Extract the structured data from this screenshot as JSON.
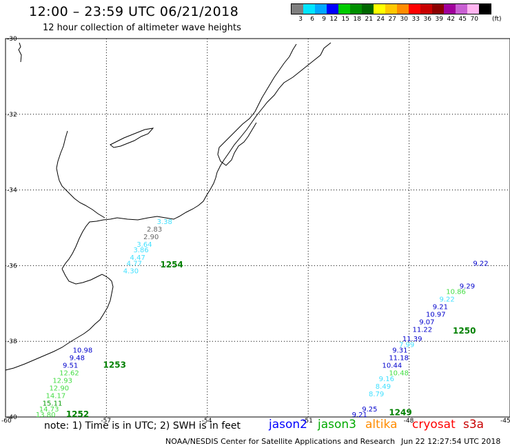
{
  "header": {
    "title": "12:00 – 23:59 UTC 06/21/2018",
    "subtitle": "12 hour collection of altimeter wave heights"
  },
  "legend": {
    "colors": [
      "#7f7f7f",
      "#00e5ff",
      "#00a8ff",
      "#0000ff",
      "#00cc00",
      "#008f00",
      "#006600",
      "#ffff00",
      "#ffc800",
      "#ff8c00",
      "#ff0000",
      "#c80000",
      "#8b0000",
      "#a0009b",
      "#c85fd2",
      "#ffb4f0",
      "#000000"
    ],
    "labels": [
      "3",
      "6",
      "9",
      "12",
      "15",
      "18",
      "21",
      "24",
      "27",
      "30",
      "33",
      "36",
      "39",
      "42",
      "45",
      "70"
    ],
    "unit": "(ft)"
  },
  "axes": {
    "lat_labels": [
      "-30",
      "-32",
      "-34",
      "-36",
      "-38",
      "-40"
    ],
    "lon_labels": [
      "-60",
      "-57",
      "-54",
      "-51",
      "-48",
      "-45"
    ]
  },
  "points": [
    {
      "label": "3.38",
      "color": "#40e0ff",
      "lon": -55.5,
      "lat": -34.9
    },
    {
      "label": "2.83",
      "color": "#666666",
      "lon": -55.8,
      "lat": -35.1
    },
    {
      "label": "2.90",
      "color": "#666666",
      "lon": -55.9,
      "lat": -35.3
    },
    {
      "label": "3.64",
      "color": "#40e0ff",
      "lon": -56.1,
      "lat": -35.5
    },
    {
      "label": "3.86",
      "color": "#40e0ff",
      "lon": -56.2,
      "lat": -35.65
    },
    {
      "label": "4.47",
      "color": "#40e0ff",
      "lon": -56.3,
      "lat": -35.85
    },
    {
      "label": "4.77",
      "color": "#40e0ff",
      "lon": -56.4,
      "lat": -36.0
    },
    {
      "label": "4.30",
      "color": "#40e0ff",
      "lon": -56.5,
      "lat": -36.2
    },
    {
      "label": "1254",
      "color": "#008000",
      "lon": -55.4,
      "lat": -36.05,
      "bold": true
    },
    {
      "label": "10.98",
      "color": "#0000cc",
      "lon": -58.0,
      "lat": -38.3
    },
    {
      "label": "9.48",
      "color": "#0000cc",
      "lon": -58.1,
      "lat": -38.5
    },
    {
      "label": "9.51",
      "color": "#0000cc",
      "lon": -58.3,
      "lat": -38.7
    },
    {
      "label": "12.62",
      "color": "#44dd44",
      "lon": -58.4,
      "lat": -38.9
    },
    {
      "label": "12.93",
      "color": "#44dd44",
      "lon": -58.6,
      "lat": -39.1
    },
    {
      "label": "12.90",
      "color": "#44dd44",
      "lon": -58.7,
      "lat": -39.3
    },
    {
      "label": "14.17",
      "color": "#44dd44",
      "lon": -58.8,
      "lat": -39.5
    },
    {
      "label": "15.11",
      "color": "#009900",
      "lon": -58.9,
      "lat": -39.7
    },
    {
      "label": "14.73",
      "color": "#44dd44",
      "lon": -59.0,
      "lat": -39.85
    },
    {
      "label": "13.80",
      "color": "#44dd44",
      "lon": -59.1,
      "lat": -40.0
    },
    {
      "label": "1253",
      "color": "#008000",
      "lon": -57.1,
      "lat": -38.7,
      "bold": true
    },
    {
      "label": "1252",
      "color": "#008000",
      "lon": -58.2,
      "lat": -40.0,
      "bold": true
    },
    {
      "label": "9.22",
      "color": "#0000cc",
      "lon": -46.1,
      "lat": -36.0
    },
    {
      "label": "9.29",
      "color": "#0000cc",
      "lon": -46.5,
      "lat": -36.6
    },
    {
      "label": "10.86",
      "color": "#44dd44",
      "lon": -46.9,
      "lat": -36.75
    },
    {
      "label": "9.22",
      "color": "#40e0ff",
      "lon": -47.1,
      "lat": -36.95
    },
    {
      "label": "9.21",
      "color": "#0000cc",
      "lon": -47.3,
      "lat": -37.15
    },
    {
      "label": "10.97",
      "color": "#0000cc",
      "lon": -47.5,
      "lat": -37.35
    },
    {
      "label": "9.07",
      "color": "#0000cc",
      "lon": -47.7,
      "lat": -37.55
    },
    {
      "label": "11.22",
      "color": "#0000cc",
      "lon": -47.9,
      "lat": -37.75
    },
    {
      "label": "11.39",
      "color": "#0000cc",
      "lon": -48.2,
      "lat": -38.0
    },
    {
      "label": "7.99",
      "color": "#40e0ff",
      "lon": -48.3,
      "lat": -38.15
    },
    {
      "label": "9.31",
      "color": "#0000cc",
      "lon": -48.5,
      "lat": -38.3
    },
    {
      "label": "11.18",
      "color": "#0000cc",
      "lon": -48.6,
      "lat": -38.5
    },
    {
      "label": "10.44",
      "color": "#0000cc",
      "lon": -48.8,
      "lat": -38.7
    },
    {
      "label": "10.48",
      "color": "#44dd44",
      "lon": -48.6,
      "lat": -38.9
    },
    {
      "label": "9.16",
      "color": "#40e0ff",
      "lon": -48.9,
      "lat": -39.05
    },
    {
      "label": "8.49",
      "color": "#40e0ff",
      "lon": -49.0,
      "lat": -39.25
    },
    {
      "label": "8.79",
      "color": "#40e0ff",
      "lon": -49.2,
      "lat": -39.45
    },
    {
      "label": "9.25",
      "color": "#0000cc",
      "lon": -49.4,
      "lat": -39.85
    },
    {
      "label": "9.21",
      "color": "#0000cc",
      "lon": -49.7,
      "lat": -40.0
    },
    {
      "label": "1250",
      "color": "#008000",
      "lon": -46.7,
      "lat": -37.8,
      "bold": true
    },
    {
      "label": "1249",
      "color": "#008000",
      "lon": -48.6,
      "lat": -39.95,
      "bold": true
    }
  ],
  "footer": {
    "note": "note: 1) Time is in UTC; 2) SWH is in feet",
    "satellites": [
      {
        "name": "jason2",
        "color": "#0000ff"
      },
      {
        "name": "jason3",
        "color": "#00aa00"
      },
      {
        "name": "altika",
        "color": "#ff8c00"
      },
      {
        "name": "cryosat",
        "color": "#ff0000"
      },
      {
        "name": "s3a",
        "color": "#c80000"
      }
    ],
    "credit": "NOAA/NESDIS Center for Satellite Applications and Research",
    "timestamp": "Jun 22 12:27:54 UTC 2018"
  }
}
